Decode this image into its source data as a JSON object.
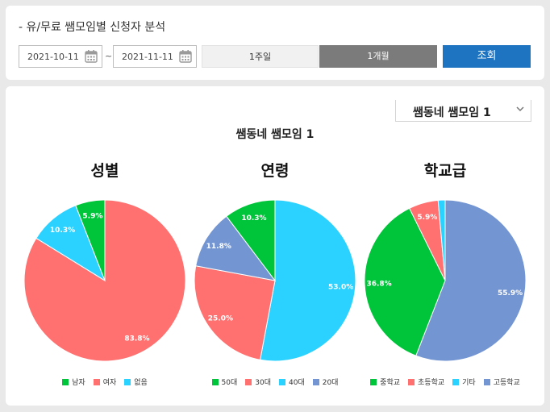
{
  "filter": {
    "title": "- 유/무료 쌤모임별 신청자 분석",
    "start_date": "2021-10-11",
    "separator": "~",
    "end_date": "2021-11-11",
    "btn_week": "1주일",
    "btn_month": "1개월",
    "btn_search": "조회"
  },
  "select": {
    "value": "쌤동네 쌤모임 1"
  },
  "colors": {
    "accent": "#1f74c2",
    "active": "#7b7b7b"
  },
  "chart_data": [
    {
      "type": "pie",
      "chart_title": "쌤동네 쌤모임 1",
      "title": "성별",
      "slices": [
        {
          "label": "여자",
          "value": 83.8,
          "color": "#ff7170"
        },
        {
          "label": "없음",
          "value": 10.3,
          "color": "#2bd1ff"
        },
        {
          "label": "남자",
          "value": 5.9,
          "color": "#00c43a"
        }
      ],
      "legend": [
        {
          "label": "남자",
          "color": "#00c43a"
        },
        {
          "label": "여자",
          "color": "#ff7170"
        },
        {
          "label": "없음",
          "color": "#2bd1ff"
        }
      ]
    },
    {
      "type": "pie",
      "title": "연령",
      "slices": [
        {
          "label": "40대",
          "value": 53.0,
          "color": "#2bd1ff"
        },
        {
          "label": "30대",
          "value": 25.0,
          "color": "#ff7170"
        },
        {
          "label": "20대",
          "value": 11.8,
          "color": "#7395d2"
        },
        {
          "label": "50대",
          "value": 10.3,
          "color": "#00c43a"
        }
      ],
      "legend": [
        {
          "label": "50대",
          "color": "#00c43a"
        },
        {
          "label": "30대",
          "color": "#ff7170"
        },
        {
          "label": "40대",
          "color": "#2bd1ff"
        },
        {
          "label": "20대",
          "color": "#7395d2"
        }
      ]
    },
    {
      "type": "pie",
      "title": "학교급",
      "slices": [
        {
          "label": "고등학교",
          "value": 55.9,
          "color": "#7395d2"
        },
        {
          "label": "중학교",
          "value": 36.8,
          "color": "#00c43a"
        },
        {
          "label": "초등학교",
          "value": 5.9,
          "color": "#ff7170"
        },
        {
          "label": "기타",
          "value": 1.4,
          "color": "#2bd1ff"
        }
      ],
      "legend": [
        {
          "label": "중학교",
          "color": "#00c43a"
        },
        {
          "label": "초등학교",
          "color": "#ff7170"
        },
        {
          "label": "기타",
          "color": "#2bd1ff"
        },
        {
          "label": "고등학교",
          "color": "#7395d2"
        }
      ]
    }
  ]
}
